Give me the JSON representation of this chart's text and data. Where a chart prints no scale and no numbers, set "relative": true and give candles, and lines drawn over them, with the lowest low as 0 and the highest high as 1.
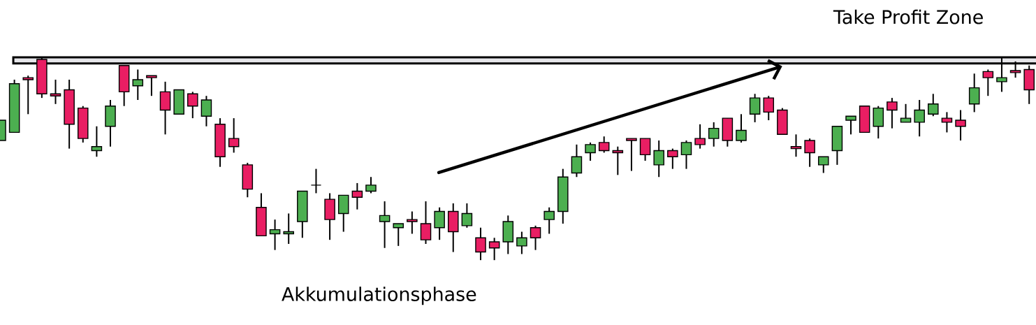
{
  "chart_data": {
    "type": "candlestick",
    "relative": true,
    "categories": [
      null,
      null,
      null,
      null,
      null,
      null,
      null,
      null,
      null,
      null,
      null,
      null,
      null,
      null,
      null,
      null,
      null,
      null,
      null,
      null,
      null,
      null,
      null,
      null,
      null,
      null,
      null,
      null,
      null,
      null,
      null,
      null,
      null,
      null,
      null,
      null,
      null,
      null,
      null,
      null,
      null,
      null,
      null,
      null,
      null,
      null,
      null,
      null,
      null,
      null,
      null,
      null,
      null,
      null,
      null,
      null,
      null,
      null,
      null,
      null,
      null,
      null,
      null,
      null,
      null,
      null,
      null,
      null,
      null,
      null,
      null,
      null,
      null,
      null,
      null,
      null
    ],
    "ohlc": [
      [
        0.59,
        0.69,
        0.59,
        0.69
      ],
      [
        0.63,
        0.89,
        0.63,
        0.87
      ],
      [
        0.9,
        0.91,
        0.72,
        0.89
      ],
      [
        0.99,
        1.0,
        0.8,
        0.82
      ],
      [
        0.82,
        0.89,
        0.77,
        0.81
      ],
      [
        0.84,
        0.89,
        0.55,
        0.67
      ],
      [
        0.75,
        0.76,
        0.58,
        0.6
      ],
      [
        0.54,
        0.66,
        0.51,
        0.56
      ],
      [
        0.66,
        0.79,
        0.56,
        0.76
      ],
      [
        0.96,
        0.96,
        0.76,
        0.83
      ],
      [
        0.86,
        0.94,
        0.79,
        0.89
      ],
      [
        0.91,
        0.91,
        0.81,
        0.9
      ],
      [
        0.83,
        0.88,
        0.62,
        0.74
      ],
      [
        0.72,
        0.84,
        0.72,
        0.84
      ],
      [
        0.82,
        0.83,
        0.7,
        0.76
      ],
      [
        0.71,
        0.81,
        0.66,
        0.79
      ],
      [
        0.67,
        0.7,
        0.46,
        0.51
      ],
      [
        0.6,
        0.7,
        0.53,
        0.56
      ],
      [
        0.47,
        0.48,
        0.31,
        0.35
      ],
      [
        0.26,
        0.33,
        0.12,
        0.12
      ],
      [
        0.13,
        0.2,
        0.05,
        0.15
      ],
      [
        0.13,
        0.23,
        0.08,
        0.14
      ],
      [
        0.19,
        0.34,
        0.11,
        0.34
      ],
      [
        0.37,
        0.45,
        0.33,
        0.37
      ],
      [
        0.3,
        0.33,
        0.1,
        0.2
      ],
      [
        0.23,
        0.32,
        0.14,
        0.32
      ],
      [
        0.34,
        0.38,
        0.25,
        0.31
      ],
      [
        0.34,
        0.41,
        0.33,
        0.37
      ],
      [
        0.19,
        0.29,
        0.06,
        0.22
      ],
      [
        0.16,
        0.18,
        0.07,
        0.18
      ],
      [
        0.2,
        0.24,
        0.13,
        0.19
      ],
      [
        0.18,
        0.29,
        0.08,
        0.1
      ],
      [
        0.16,
        0.26,
        0.1,
        0.24
      ],
      [
        0.24,
        0.28,
        0.04,
        0.14
      ],
      [
        0.17,
        0.28,
        0.16,
        0.23
      ],
      [
        0.11,
        0.16,
        0.0,
        0.04
      ],
      [
        0.09,
        0.11,
        0.0,
        0.06
      ],
      [
        0.09,
        0.22,
        0.03,
        0.19
      ],
      [
        0.07,
        0.14,
        0.03,
        0.11
      ],
      [
        0.16,
        0.17,
        0.05,
        0.11
      ],
      [
        0.2,
        0.26,
        0.13,
        0.24
      ],
      [
        0.24,
        0.45,
        0.18,
        0.41
      ],
      [
        0.43,
        0.57,
        0.41,
        0.51
      ],
      [
        0.53,
        0.58,
        0.49,
        0.57
      ],
      [
        0.58,
        0.61,
        0.53,
        0.54
      ],
      [
        0.54,
        0.56,
        0.42,
        0.53
      ],
      [
        0.6,
        0.6,
        0.44,
        0.59
      ],
      [
        0.6,
        0.6,
        0.49,
        0.52
      ],
      [
        0.47,
        0.59,
        0.41,
        0.54
      ],
      [
        0.54,
        0.55,
        0.45,
        0.51
      ],
      [
        0.52,
        0.59,
        0.45,
        0.58
      ],
      [
        0.6,
        0.67,
        0.55,
        0.57
      ],
      [
        0.6,
        0.68,
        0.56,
        0.65
      ],
      [
        0.7,
        0.7,
        0.56,
        0.59
      ],
      [
        0.59,
        0.72,
        0.58,
        0.64
      ],
      [
        0.72,
        0.82,
        0.68,
        0.8
      ],
      [
        0.8,
        0.81,
        0.69,
        0.73
      ],
      [
        0.74,
        0.75,
        0.62,
        0.62
      ],
      [
        0.56,
        0.62,
        0.51,
        0.55
      ],
      [
        0.59,
        0.6,
        0.46,
        0.53
      ],
      [
        0.47,
        0.51,
        0.43,
        0.51
      ],
      [
        0.54,
        0.66,
        0.47,
        0.66
      ],
      [
        0.69,
        0.71,
        0.62,
        0.71
      ],
      [
        0.76,
        0.76,
        0.63,
        0.63
      ],
      [
        0.66,
        0.76,
        0.6,
        0.75
      ],
      [
        0.78,
        0.8,
        0.65,
        0.74
      ],
      [
        0.68,
        0.77,
        0.68,
        0.7
      ],
      [
        0.68,
        0.79,
        0.61,
        0.74
      ],
      [
        0.72,
        0.82,
        0.71,
        0.77
      ],
      [
        0.7,
        0.73,
        0.63,
        0.68
      ],
      [
        0.69,
        0.74,
        0.59,
        0.66
      ],
      [
        0.77,
        0.92,
        0.73,
        0.85
      ],
      [
        0.93,
        0.94,
        0.81,
        0.9
      ],
      [
        0.88,
        1.0,
        0.83,
        0.9
      ],
      [
        0.935,
        0.98,
        0.9,
        0.925
      ],
      [
        0.94,
        0.96,
        0.77,
        0.84
      ]
    ],
    "colors": [
      "#4caf50",
      "#4caf50",
      "#e91e63",
      "#e91e63",
      "#e91e63",
      "#e91e63",
      "#e91e63",
      "#4caf50",
      "#4caf50",
      "#e91e63",
      "#4caf50",
      "#e91e63",
      "#e91e63",
      "#4caf50",
      "#e91e63",
      "#4caf50",
      "#e91e63",
      "#e91e63",
      "#e91e63",
      "#e91e63",
      "#4caf50",
      "#4caf50",
      "#4caf50",
      "#000000",
      "#e91e63",
      "#4caf50",
      "#e91e63",
      "#4caf50",
      "#4caf50",
      "#4caf50",
      "#e91e63",
      "#e91e63",
      "#4caf50",
      "#e91e63",
      "#4caf50",
      "#e91e63",
      "#e91e63",
      "#4caf50",
      "#4caf50",
      "#e91e63",
      "#4caf50",
      "#4caf50",
      "#4caf50",
      "#4caf50",
      "#e91e63",
      "#e91e63",
      "#e91e63",
      "#e91e63",
      "#4caf50",
      "#e91e63",
      "#4caf50",
      "#e91e63",
      "#4caf50",
      "#e91e63",
      "#4caf50",
      "#4caf50",
      "#e91e63",
      "#e91e63",
      "#e91e63",
      "#e91e63",
      "#4caf50",
      "#4caf50",
      "#4caf50",
      "#e91e63",
      "#4caf50",
      "#e91e63",
      "#4caf50",
      "#4caf50",
      "#4caf50",
      "#e91e63",
      "#e91e63",
      "#4caf50",
      "#e91e63",
      "#4caf50",
      "#e91e63",
      "#e91e63"
    ],
    "bands": [
      {
        "axis": "y",
        "from": 0.97,
        "to": 1.0,
        "label": "Take Profit Zone",
        "color": "#e6e6ea"
      }
    ],
    "annotations": [
      "Akkumulationsphase"
    ]
  }
}
